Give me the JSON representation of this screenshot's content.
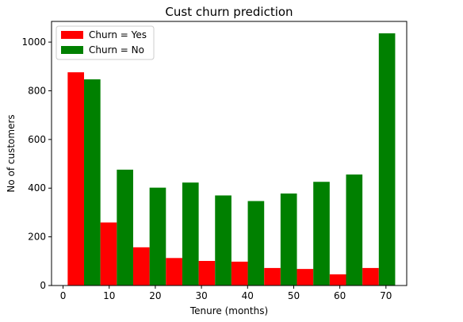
{
  "chart_data": {
    "type": "bar",
    "title": "Cust churn prediction",
    "xlabel": "Tenure (months)",
    "ylabel": "No of customers",
    "xlim": [
      -2.5,
      74.5
    ],
    "ylim": [
      0,
      1085
    ],
    "xticks": [
      0,
      10,
      20,
      30,
      40,
      50,
      60,
      70
    ],
    "yticks": [
      0,
      200,
      400,
      600,
      800,
      1000
    ],
    "bin_edges": [
      1,
      8.1,
      15.2,
      22.3,
      29.4,
      36.5,
      43.6,
      50.7,
      57.8,
      64.9,
      72
    ],
    "legend_position": "upper-left",
    "grid": false,
    "series": [
      {
        "name": "Churn = Yes",
        "color": "#ff0000",
        "values": [
          876,
          259,
          157,
          113,
          101,
          98,
          72,
          68,
          46,
          72
        ]
      },
      {
        "name": "Churn = No",
        "color": "#008000",
        "values": [
          847,
          476,
          402,
          423,
          370,
          347,
          378,
          426,
          456,
          1036
        ]
      }
    ]
  }
}
